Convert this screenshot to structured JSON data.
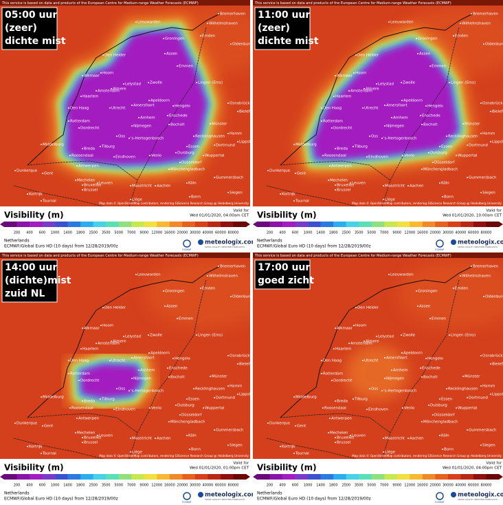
{
  "header_note": "This service is based on data and products of the European Centre for Medium-range Weather Forecasts (ECMWF)",
  "attribution": "Map data © OpenStreetMap contributors, rendering GIScience Research Group @ Heidelberg University",
  "legend": {
    "title": "Visibility (m)",
    "valid_label": "Valid for",
    "ticks": [
      200,
      400,
      600,
      1000,
      1400,
      1800,
      2500,
      3500,
      5000,
      7000,
      9000,
      12000,
      16000,
      20000,
      30000,
      40000,
      60000,
      80000
    ]
  },
  "region": "Netherlands",
  "model": "ECMWF/Global Euro HD (10 days) from 12/28/2019/00z",
  "brand": "meteologix.com",
  "brand_tagline": "SWISS QUALITY WEATHER FORECASTS",
  "ecmwf": "ECMWF",
  "cities": [
    "Bremerhaven",
    "Wilhelmshaven",
    "Emden",
    "Oldenburg",
    "Leeuwarden",
    "Groningen",
    "Den Helder",
    "Assen",
    "Emmen",
    "Alkmaar",
    "Hoorn",
    "Lelystad",
    "Zwolle",
    "Lingen (Ems)",
    "Amsterdam",
    "Almere",
    "Haarlem",
    "Apeldoorn",
    "Hengelo",
    "Enschede",
    "Osnabrück",
    "Den Haag",
    "Utrecht",
    "Amersfoort",
    "Arnhem",
    "Rotterdam",
    "Nijmegen",
    "Dordrecht",
    "Münster",
    "Bielefeld",
    "Bocholt",
    "Oss",
    "Middelburg",
    "Breda",
    "Tilburg",
    "'s-Hertogenbosch",
    "Recklinghausen",
    "Hamm",
    "Roosendaal",
    "Eindhoven",
    "Venlo",
    "Essen",
    "Dortmund",
    "Duisburg",
    "Lippstadt",
    "Antwerpen",
    "Wuppertal",
    "Düsseldorf",
    "Mönchengladbach",
    "Dunkerque",
    "Gent",
    "Mechelen",
    "Bruxelles",
    "Brussel",
    "Leuven",
    "Maastricht",
    "Aachen",
    "Köln",
    "Gummersbach",
    "Siegen",
    "Kortrijk",
    "Tournai",
    "Liège",
    "Bonn"
  ],
  "panels": [
    {
      "label": [
        "05:00 uur",
        "(zeer)",
        "dichte mist"
      ],
      "valid": "Wed 01/01/2020, 04:00am CET"
    },
    {
      "label": [
        "11:00 uur",
        "(zeer)",
        "dichte mist"
      ],
      "valid": "Wed 01/01/2020, 10:00am CET"
    },
    {
      "label": [
        "14:00 uur",
        "(dichte)mist",
        "zuid NL"
      ],
      "valid": "Wed 01/01/2020, 01:00pm CET"
    },
    {
      "label": [
        "17:00 uur",
        "goed zicht"
      ],
      "valid": "Wed 01/01/2020, 04:00pm CET"
    }
  ]
}
